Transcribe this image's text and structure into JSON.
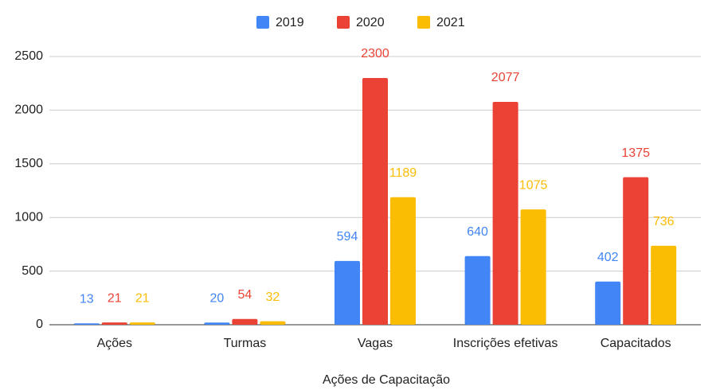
{
  "chart_data": {
    "type": "bar",
    "x_label": "Ações de Capacitação",
    "categories": [
      "Ações",
      "Turmas",
      "Vagas",
      "Inscrições efetivas",
      "Capacitados"
    ],
    "series": [
      {
        "name": "2019",
        "color": "#4285f4",
        "values": [
          13,
          20,
          594,
          640,
          402
        ]
      },
      {
        "name": "2020",
        "color": "#ea4335",
        "values": [
          21,
          54,
          2300,
          2077,
          1375
        ]
      },
      {
        "name": "2021",
        "color": "#fbbc04",
        "values": [
          21,
          32,
          1189,
          1075,
          736
        ]
      }
    ],
    "ylim": [
      0,
      2500
    ],
    "yticks": [
      0,
      500,
      1000,
      1500,
      2000,
      2500
    ],
    "grid": true,
    "legend": "top"
  }
}
